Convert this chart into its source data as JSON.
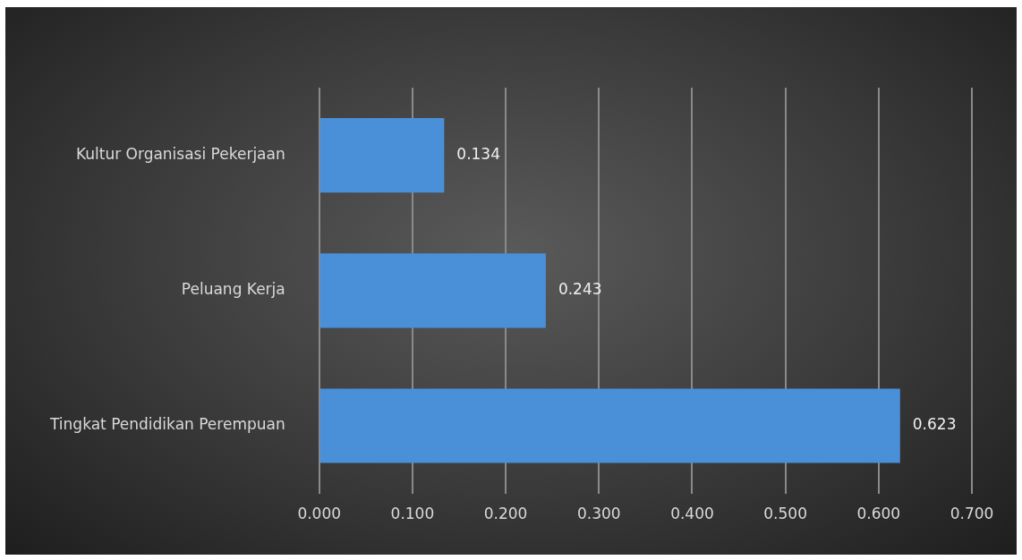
{
  "chart_data": {
    "type": "bar",
    "orientation": "horizontal",
    "categories": [
      "Kultur Organisasi Pekerjaan",
      "Peluang Kerja",
      "Tingkat Pendidikan Perempuan"
    ],
    "values": [
      0.134,
      0.243,
      0.623
    ],
    "color": "#4a90d9",
    "xlim": [
      0,
      0.7
    ],
    "xticks": [
      {
        "value": 0,
        "label": "0.000"
      },
      {
        "value": 0.1,
        "label": "0.100"
      },
      {
        "value": 0.2,
        "label": "0.200"
      },
      {
        "value": 0.3,
        "label": "0.300"
      },
      {
        "value": 0.4,
        "label": "0.400"
      },
      {
        "value": 0.5,
        "label": "0.500"
      },
      {
        "value": 0.6,
        "label": "0.600"
      },
      {
        "value": 0.7,
        "label": "0.700"
      }
    ],
    "grid": "x",
    "data_labels": true
  }
}
